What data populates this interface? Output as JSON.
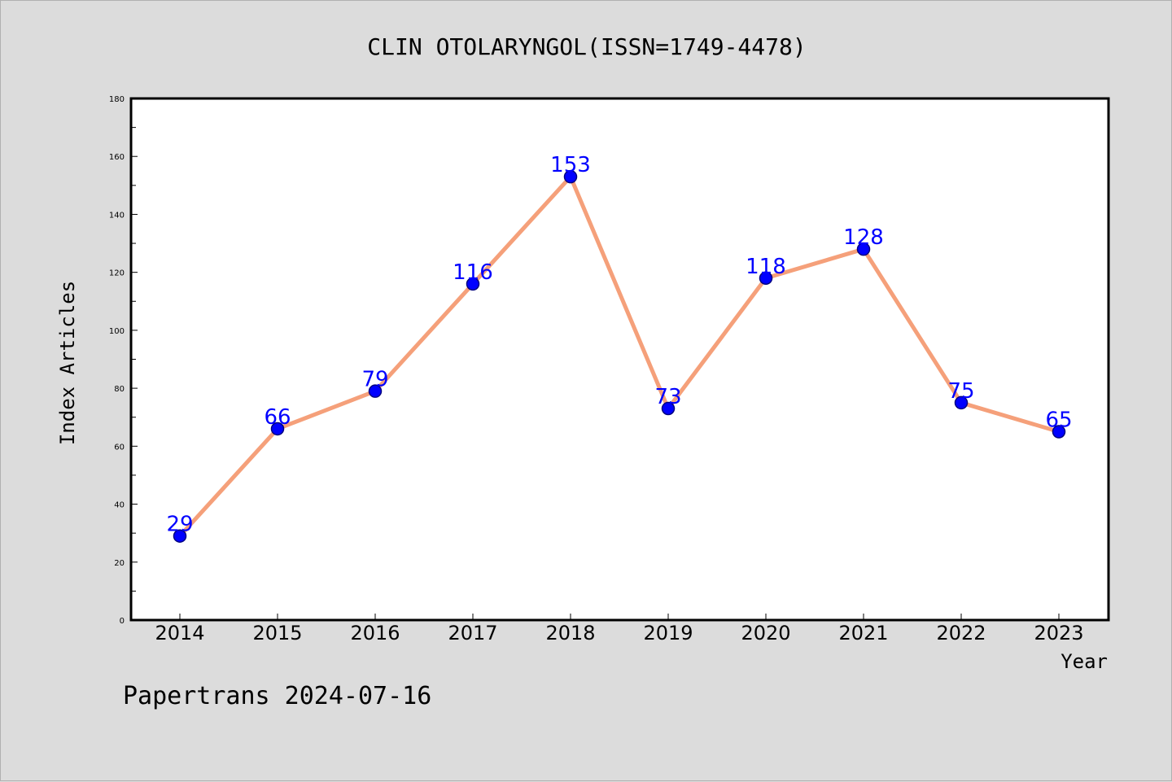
{
  "chart_data": {
    "type": "line",
    "title": "CLIN OTOLARYNGOL(ISSN=1749-4478)",
    "xlabel": "Year",
    "ylabel": "Index Articles",
    "categories": [
      "2014",
      "2015",
      "2016",
      "2017",
      "2018",
      "2019",
      "2020",
      "2021",
      "2022",
      "2023"
    ],
    "values": [
      29,
      66,
      79,
      116,
      153,
      73,
      118,
      128,
      75,
      65
    ],
    "data_labels": [
      "29",
      "66",
      "79",
      "116",
      "153",
      "73",
      "118",
      "128",
      "75",
      "65"
    ],
    "ylim": [
      0,
      180
    ],
    "yticks": [
      "0",
      "20",
      "40",
      "60",
      "80",
      "100",
      "120",
      "140",
      "160",
      "180"
    ],
    "grid": false,
    "legend": "none",
    "colors": {
      "line": "#f5a07a",
      "marker": "#0000ff",
      "marker_edge": "#000080",
      "label": "#0000ff",
      "background": "#dcdcdc",
      "plot_background": "#ffffff"
    }
  },
  "footer": {
    "text": "Papertrans 2024-07-16"
  }
}
